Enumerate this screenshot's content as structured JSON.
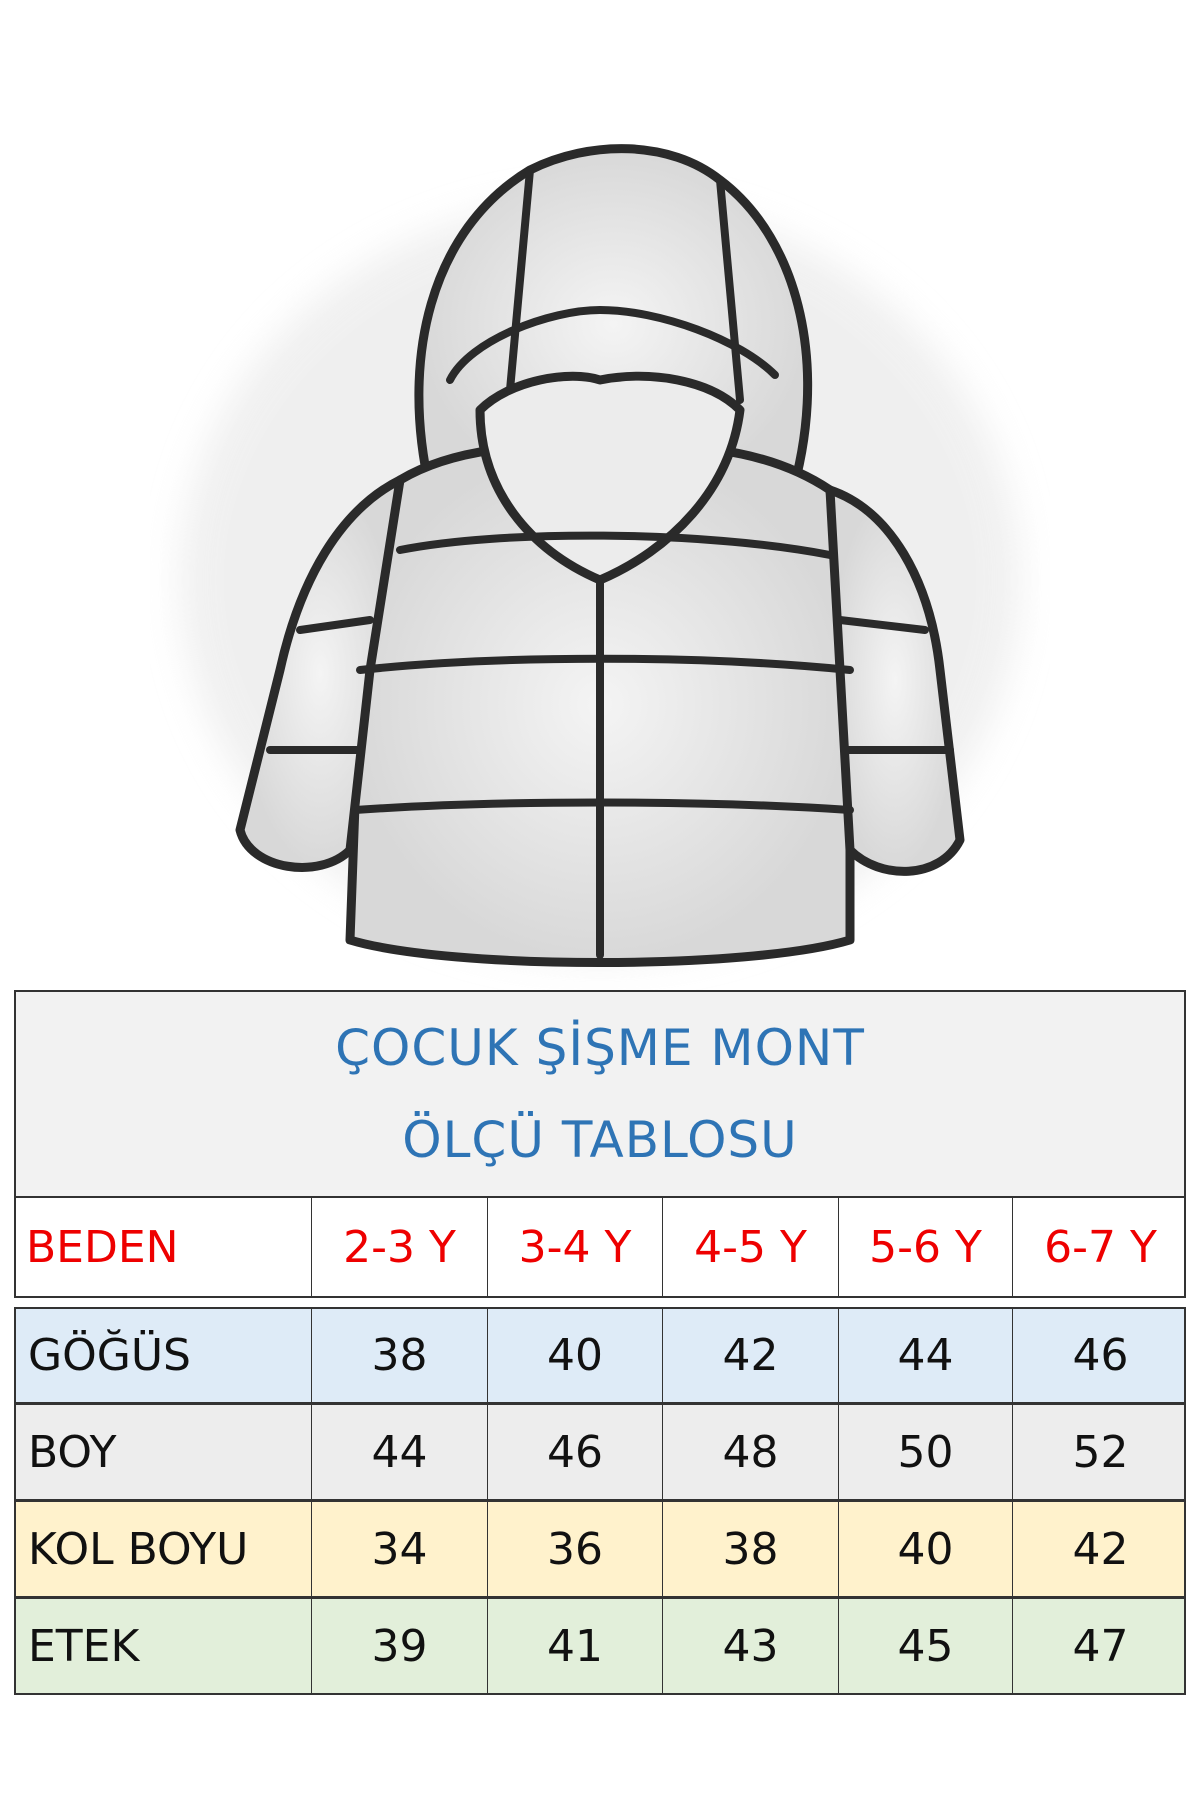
{
  "title": {
    "line1": "ÇOCUK ŞİŞME MONT",
    "line2": "ÖLÇÜ TABLOSU",
    "color": "#2e74b5"
  },
  "size_row": {
    "label": "BEDEN",
    "sizes": [
      "2-3 Y",
      "3-4 Y",
      "4-5 Y",
      "5-6 Y",
      "6-7 Y"
    ],
    "color": "#e00000"
  },
  "rows": [
    {
      "label": "GÖĞÜS",
      "values": [
        "38",
        "40",
        "42",
        "44",
        "46"
      ],
      "bg": "#deebf7"
    },
    {
      "label": "BOY",
      "values": [
        "44",
        "46",
        "48",
        "50",
        "52"
      ],
      "bg": "#ededed"
    },
    {
      "label": "KOL BOYU",
      "values": [
        "34",
        "36",
        "38",
        "40",
        "42"
      ],
      "bg": "#fff2cc"
    },
    {
      "label": "ETEK",
      "values": [
        "39",
        "41",
        "43",
        "45",
        "47"
      ],
      "bg": "#e2efda"
    }
  ]
}
